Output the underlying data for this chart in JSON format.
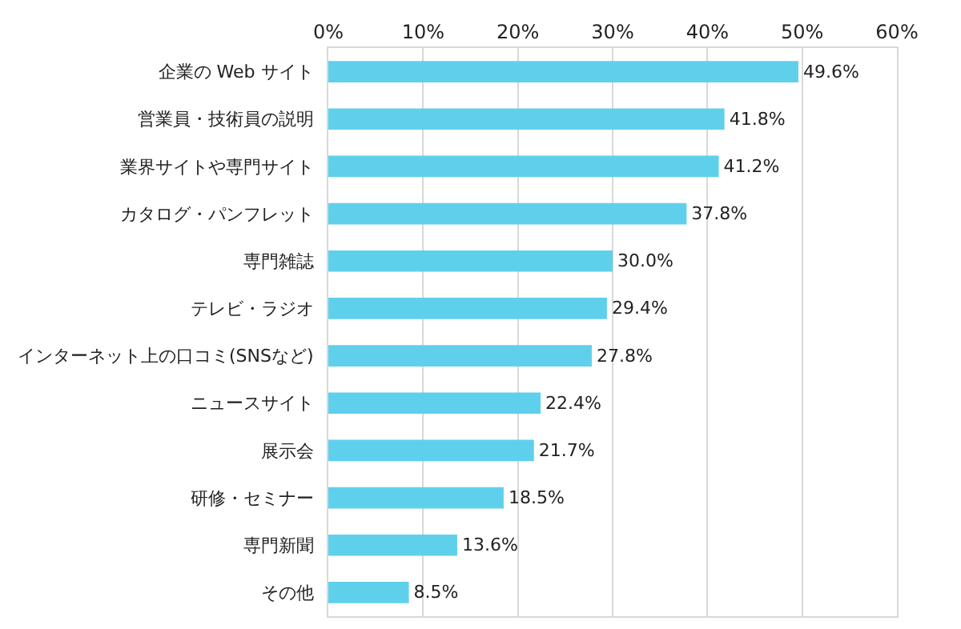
{
  "chart_data": {
    "type": "bar",
    "orientation": "horizontal",
    "categories": [
      "企業の Web サイト",
      "営業員・技術員の説明",
      "業界サイトや専門サイト",
      "カタログ・パンフレット",
      "専門雑誌",
      "テレビ・ラジオ",
      "インターネット上の口コミ(SNSなど)",
      "ニュースサイト",
      "展示会",
      "研修・セミナー",
      "専門新聞",
      "その他"
    ],
    "values": [
      49.6,
      41.8,
      41.2,
      37.8,
      30.0,
      29.4,
      27.8,
      22.4,
      21.7,
      18.5,
      13.6,
      8.5
    ],
    "value_labels": [
      "49.6%",
      "41.8%",
      "41.2%",
      "37.8%",
      "30.0%",
      "29.4%",
      "27.8%",
      "22.4%",
      "21.7%",
      "18.5%",
      "13.6%",
      "8.5%"
    ],
    "color": "#5fd0ec",
    "xlim": [
      0,
      60
    ],
    "xticks": [
      {
        "value": 0,
        "label": "0%"
      },
      {
        "value": 10,
        "label": "10%"
      },
      {
        "value": 20,
        "label": "20%"
      },
      {
        "value": 30,
        "label": "30%"
      },
      {
        "value": 40,
        "label": "40%"
      },
      {
        "value": 50,
        "label": "50%"
      },
      {
        "value": 60,
        "label": "60%"
      }
    ],
    "grid": "x"
  }
}
